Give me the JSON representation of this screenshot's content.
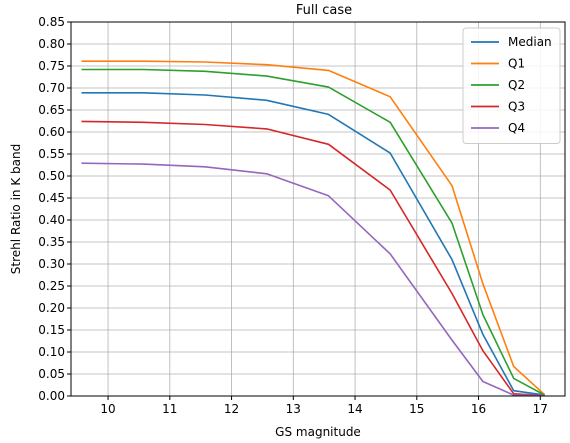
{
  "chart_data": {
    "type": "line",
    "title": "Full case",
    "xlabel": "GS magnitude",
    "ylabel": "Strehl Ratio in K band",
    "xlim": [
      9.4,
      17.4
    ],
    "ylim": [
      0.0,
      0.85
    ],
    "xticks": [
      10,
      11,
      12,
      13,
      14,
      15,
      16,
      17
    ],
    "yticks": [
      0.0,
      0.05,
      0.1,
      0.15,
      0.2,
      0.25,
      0.3,
      0.35,
      0.4,
      0.45,
      0.5,
      0.55,
      0.6,
      0.65,
      0.7,
      0.75,
      0.8,
      0.85
    ],
    "ytick_labels": [
      "0.00",
      "0.05",
      "0.10",
      "0.15",
      "0.20",
      "0.25",
      "0.30",
      "0.35",
      "0.40",
      "0.45",
      "0.50",
      "0.55",
      "0.60",
      "0.65",
      "0.70",
      "0.75",
      "0.80",
      "0.85"
    ],
    "grid": true,
    "legend_position": "top-right",
    "x": [
      9.57,
      10.57,
      11.57,
      12.57,
      13.57,
      14.57,
      15.57,
      16.07,
      16.57,
      17.07
    ],
    "series": [
      {
        "name": "Median",
        "color": "#1f77b4",
        "values": [
          0.689,
          0.689,
          0.684,
          0.672,
          0.64,
          0.552,
          0.31,
          0.14,
          0.012,
          0.002
        ]
      },
      {
        "name": "Q1",
        "color": "#ff7f0e",
        "values": [
          0.761,
          0.761,
          0.759,
          0.753,
          0.74,
          0.68,
          0.478,
          0.255,
          0.067,
          0.003
        ]
      },
      {
        "name": "Q2",
        "color": "#2ca02c",
        "values": [
          0.742,
          0.742,
          0.738,
          0.727,
          0.702,
          0.622,
          0.393,
          0.185,
          0.04,
          0.002
        ]
      },
      {
        "name": "Q3",
        "color": "#d62728",
        "values": [
          0.624,
          0.622,
          0.617,
          0.607,
          0.572,
          0.468,
          0.233,
          0.103,
          0.005,
          0.001
        ]
      },
      {
        "name": "Q4",
        "color": "#9467bd",
        "values": [
          0.529,
          0.527,
          0.521,
          0.505,
          0.455,
          0.323,
          0.127,
          0.033,
          0.002,
          0.001
        ]
      }
    ]
  }
}
